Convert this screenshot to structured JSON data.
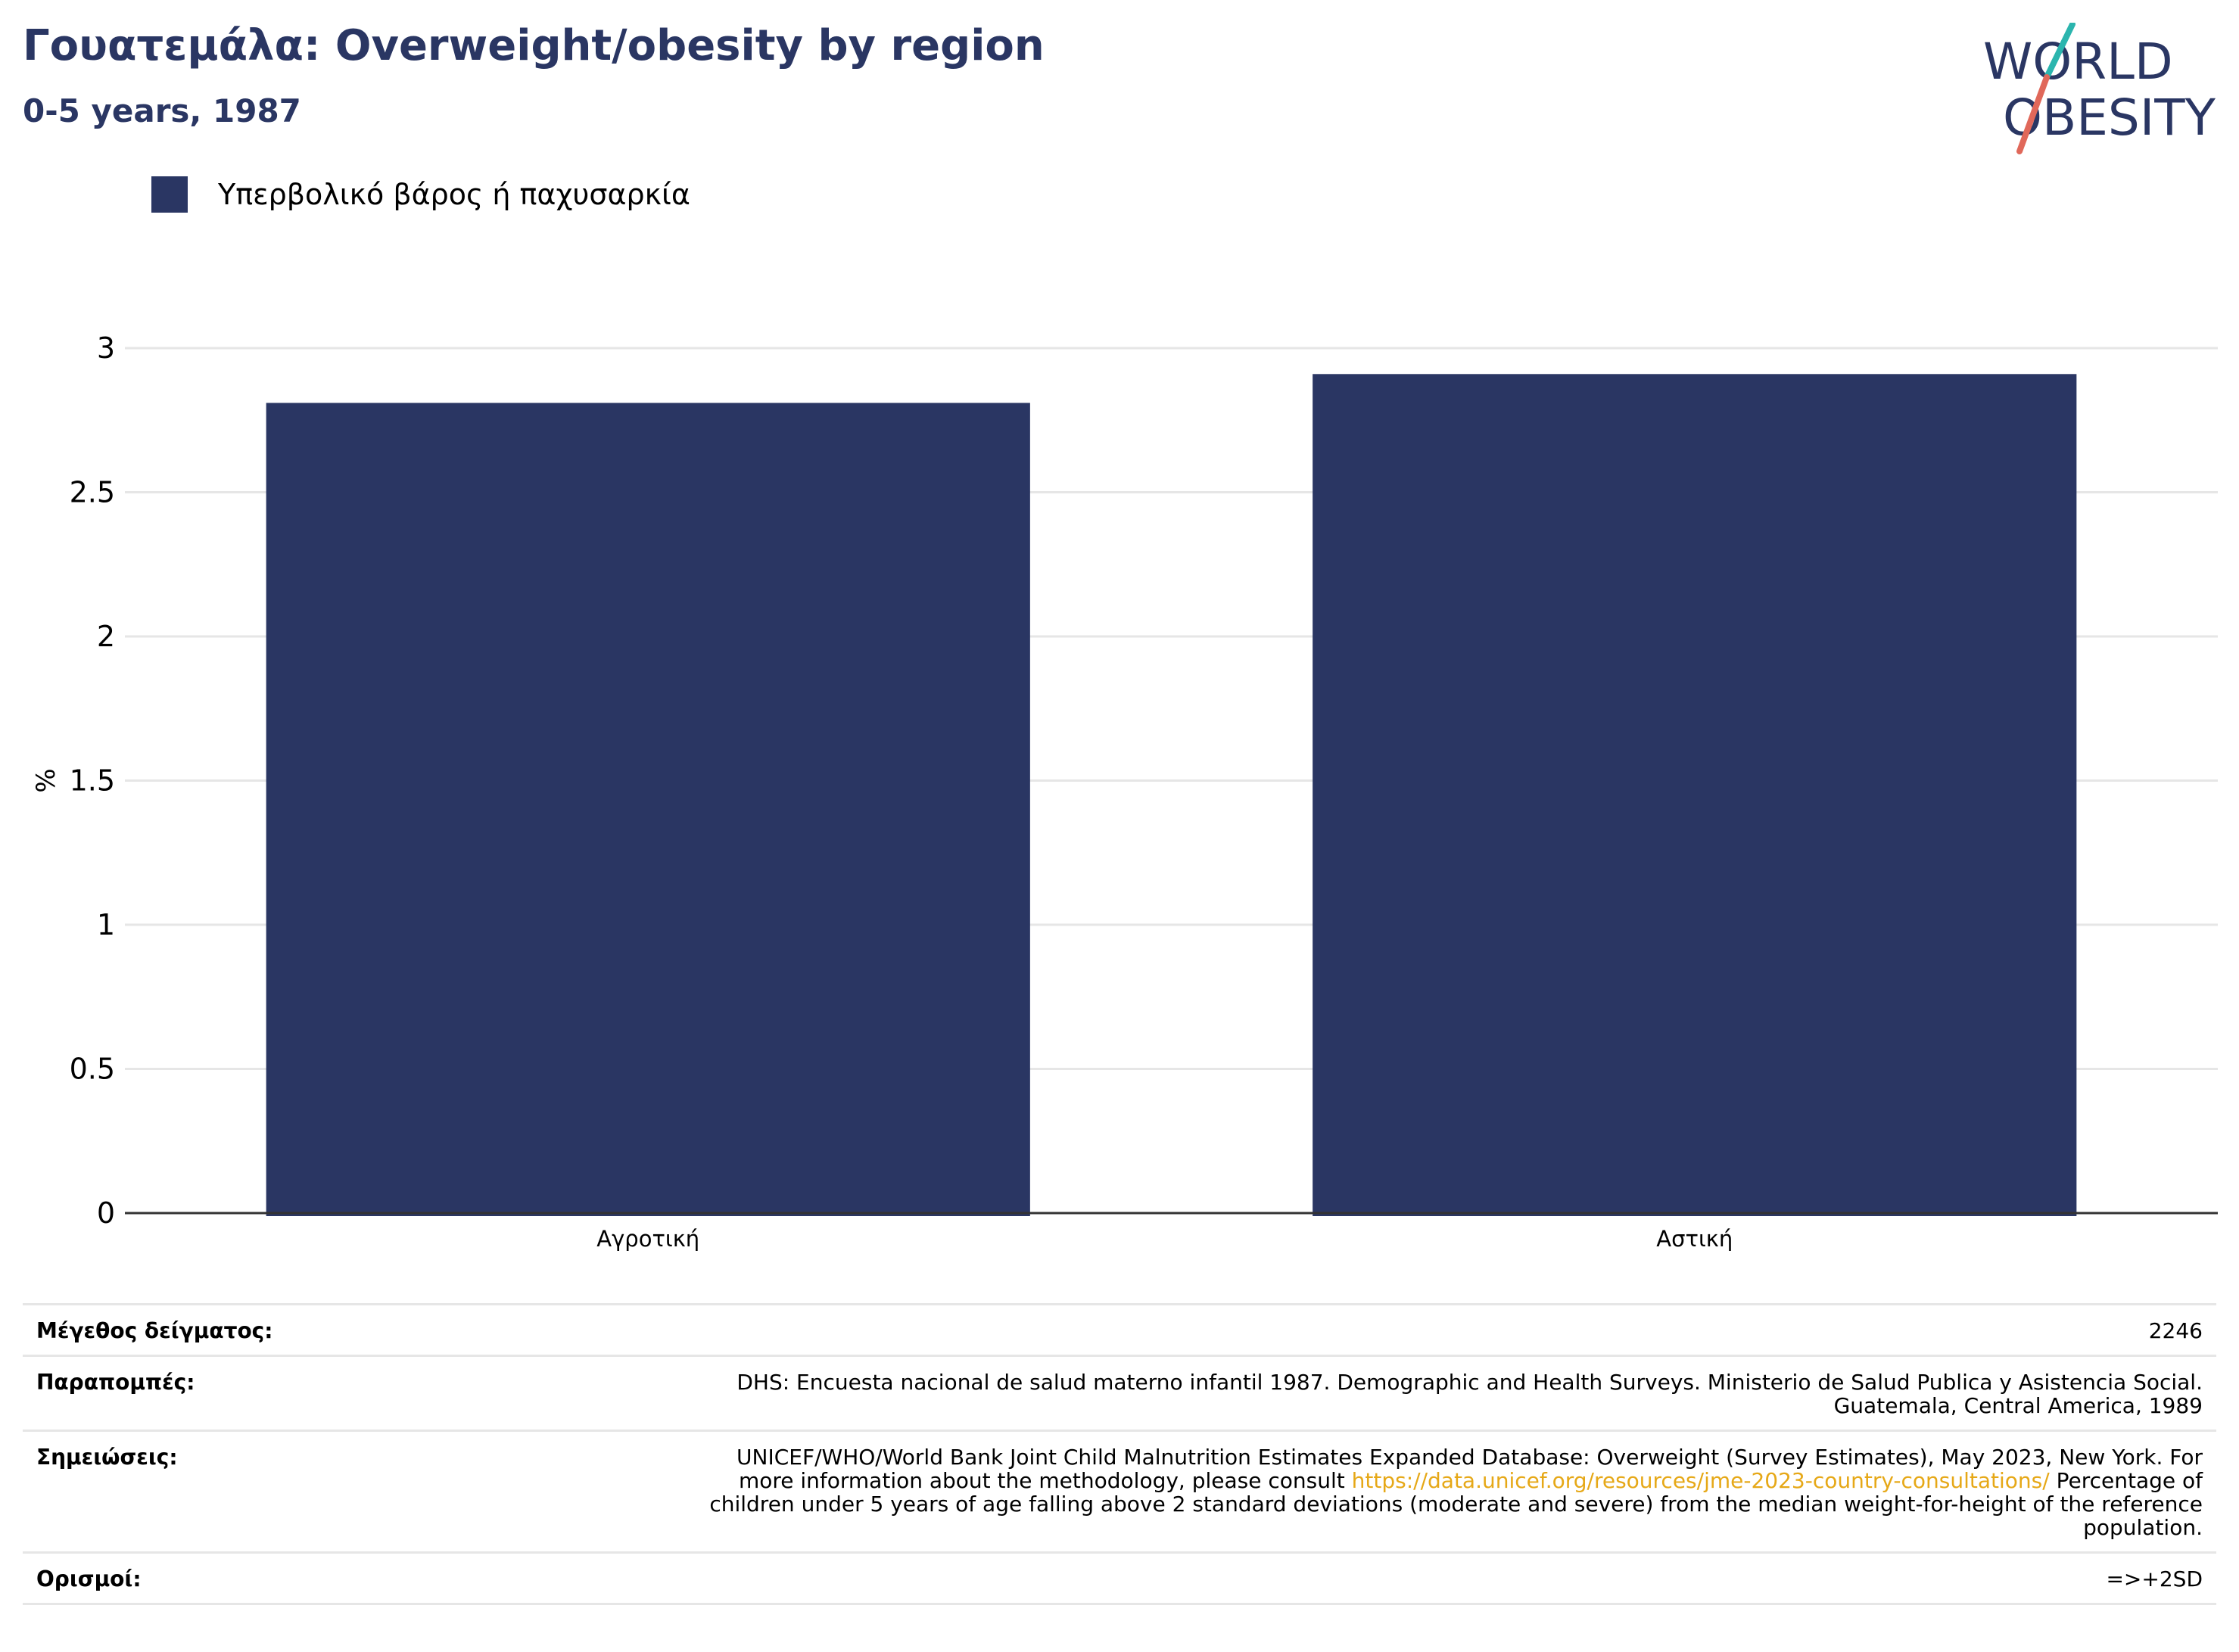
{
  "header": {
    "title": "Γουατεμάλα: Overweight/obesity by region",
    "subtitle": "0-5 years, 1987"
  },
  "logo": {
    "line1": "WORLD",
    "line2": "OBESITY",
    "colors": {
      "text": "#2a3663",
      "slash_teal": "#2bb5ae",
      "slash_red": "#e0685a"
    }
  },
  "colors": {
    "bar": "#2a3663",
    "grid": "#e6e6e6",
    "axis": "#333333",
    "link": "#e6a817"
  },
  "chart_data": {
    "type": "bar",
    "categories": [
      "Αγροτική",
      "Αστική"
    ],
    "series": [
      {
        "name": "Υπερβολικό βάρος ή παχυσαρκία",
        "values": [
          2.81,
          2.91
        ]
      }
    ],
    "ylabel": "%",
    "ylim": [
      0,
      3
    ],
    "yticks": [
      0,
      0.5,
      1,
      1.5,
      2,
      2.5,
      3
    ],
    "ytick_labels": [
      "0",
      "0.5",
      "1",
      "1.5",
      "2",
      "2.5",
      "3"
    ],
    "grid": true,
    "legend_position": "top-left"
  },
  "meta": {
    "sample_label": "Μέγεθος δείγματος:",
    "sample_value": "2246",
    "refs_label": "Παραπομπές:",
    "refs_line1": "DHS: Encuesta nacional de salud materno infantil 1987. Demographic and Health Surveys. Ministerio de Salud Publica y Asistencia Social.",
    "refs_line2": "Guatemala, Central America, 1989",
    "notes_label": "Σημειώσεις:",
    "notes_line1": "UNICEF/WHO/World Bank Joint Child Malnutrition Estimates Expanded Database: Overweight (Survey Estimates), May 2023, New York. For",
    "notes_line2_pre": "more information about the methodology, please consult ",
    "notes_link": "https://data.unicef.org/resources/jme-2023-country-consultations/",
    "notes_line2_post": " Percentage of",
    "notes_line3": "children under 5 years of age falling above 2 standard deviations (moderate and severe) from the median weight-for-height of the reference",
    "notes_line4": "population.",
    "defs_label": "Ορισμοί:",
    "defs_value": "=>+2SD"
  }
}
